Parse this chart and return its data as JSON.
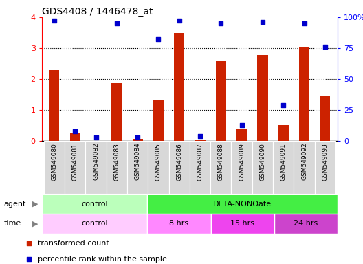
{
  "title": "GDS4408 / 1446478_at",
  "samples": [
    "GSM549080",
    "GSM549081",
    "GSM549082",
    "GSM549083",
    "GSM549084",
    "GSM549085",
    "GSM549086",
    "GSM549087",
    "GSM549088",
    "GSM549089",
    "GSM549090",
    "GSM549091",
    "GSM549092",
    "GSM549093"
  ],
  "transformed_count": [
    2.3,
    0.25,
    0.0,
    1.88,
    0.07,
    1.32,
    3.48,
    0.05,
    2.58,
    0.38,
    2.78,
    0.52,
    3.02,
    1.48
  ],
  "percentile_rank": [
    97,
    8,
    3,
    95,
    3,
    82,
    97,
    4,
    95,
    13,
    96,
    29,
    95,
    76
  ],
  "ylim_left": [
    0,
    4
  ],
  "ylim_right": [
    0,
    100
  ],
  "yticks_left": [
    0,
    1,
    2,
    3,
    4
  ],
  "yticks_right": [
    0,
    25,
    50,
    75,
    100
  ],
  "yticklabels_right": [
    "0",
    "25",
    "50",
    "75",
    "100%"
  ],
  "bar_color": "#cc2200",
  "dot_color": "#0000cc",
  "agent_row": [
    {
      "label": "control",
      "start": 0,
      "end": 5,
      "color": "#bbffbb"
    },
    {
      "label": "DETA-NONOate",
      "start": 5,
      "end": 14,
      "color": "#44ee44"
    }
  ],
  "time_row": [
    {
      "label": "control",
      "start": 0,
      "end": 5,
      "color": "#ffccff"
    },
    {
      "label": "8 hrs",
      "start": 5,
      "end": 8,
      "color": "#ff88ff"
    },
    {
      "label": "15 hrs",
      "start": 8,
      "end": 11,
      "color": "#ee44ee"
    },
    {
      "label": "24 hrs",
      "start": 11,
      "end": 14,
      "color": "#cc44cc"
    }
  ],
  "legend_items": [
    {
      "label": "transformed count",
      "color": "#cc2200"
    },
    {
      "label": "percentile rank within the sample",
      "color": "#0000cc"
    }
  ],
  "sample_bg_color": "#d8d8d8",
  "plot_bg_color": "#ffffff"
}
